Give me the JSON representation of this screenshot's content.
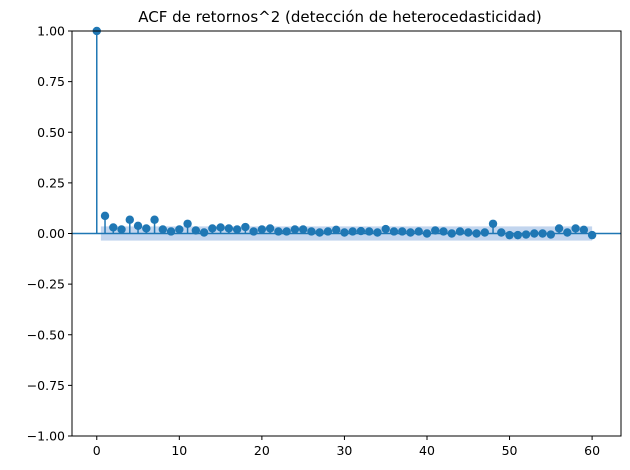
{
  "chart_data": {
    "type": "stem",
    "title": "ACF de retornos^2 (detección de heterocedasticidad)",
    "xlabel": "",
    "ylabel": "",
    "xlim": [
      -3,
      63.5
    ],
    "ylim": [
      -1.0,
      1.0
    ],
    "x_ticks": [
      0,
      10,
      20,
      30,
      40,
      50,
      60
    ],
    "y_ticks": [
      -1.0,
      -0.75,
      -0.5,
      -0.25,
      0.0,
      0.25,
      0.5,
      0.75,
      1.0
    ],
    "y_tick_labels": [
      "−1.00",
      "−0.75",
      "−0.50",
      "−0.25",
      "0.00",
      "0.25",
      "0.50",
      "0.75",
      "1.00"
    ],
    "x_tick_labels": [
      "0",
      "10",
      "20",
      "30",
      "40",
      "50",
      "60"
    ],
    "grid": false,
    "legend": "none",
    "colors": {
      "stem": "#1f77b4",
      "marker": "#1f77b4",
      "confidence_band": "#aec7e8",
      "zero_line": "#1f77b4"
    },
    "confidence_band": {
      "x_start": 0.5,
      "x_end": 60,
      "upper": 0.035,
      "lower": -0.035
    },
    "lags": [
      0,
      1,
      2,
      3,
      4,
      5,
      6,
      7,
      8,
      9,
      10,
      11,
      12,
      13,
      14,
      15,
      16,
      17,
      18,
      19,
      20,
      21,
      22,
      23,
      24,
      25,
      26,
      27,
      28,
      29,
      30,
      31,
      32,
      33,
      34,
      35,
      36,
      37,
      38,
      39,
      40,
      41,
      42,
      43,
      44,
      45,
      46,
      47,
      48,
      49,
      50,
      51,
      52,
      53,
      54,
      55,
      56,
      57,
      58,
      59,
      60
    ],
    "values": [
      1.0,
      0.087,
      0.03,
      0.02,
      0.068,
      0.038,
      0.025,
      0.068,
      0.02,
      0.01,
      0.02,
      0.048,
      0.015,
      0.005,
      0.025,
      0.03,
      0.025,
      0.02,
      0.032,
      0.01,
      0.02,
      0.025,
      0.01,
      0.01,
      0.02,
      0.02,
      0.01,
      0.005,
      0.01,
      0.018,
      0.005,
      0.01,
      0.012,
      0.01,
      0.005,
      0.022,
      0.01,
      0.01,
      0.005,
      0.01,
      0.0,
      0.015,
      0.01,
      0.0,
      0.01,
      0.005,
      0.0,
      0.005,
      0.048,
      0.005,
      -0.008,
      -0.008,
      -0.005,
      0.0,
      0.0,
      -0.005,
      0.025,
      0.005,
      0.025,
      0.018,
      -0.008
    ]
  }
}
